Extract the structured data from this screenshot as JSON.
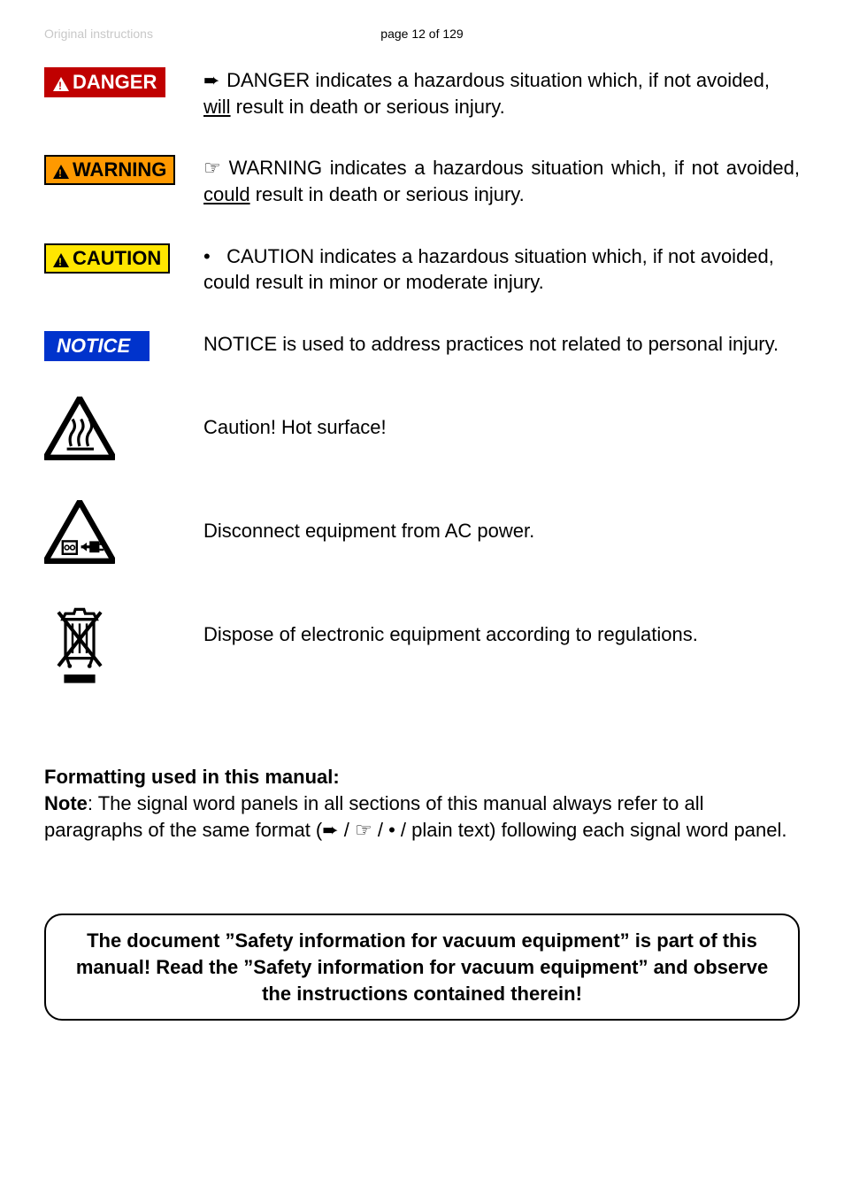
{
  "header": {
    "left": "Original instructions",
    "center": "page 12 of 129"
  },
  "items": [
    {
      "panel": "DANGER",
      "panel_class": "panel-danger",
      "tri_class": "tri-white",
      "exc_class": "tri-exc-red",
      "bullet": "➨",
      "text_pre": "DANGER indicates a hazardous situation which, if not avoided, ",
      "underlined": "will",
      "text_post": " result in death or serious injury.",
      "justify": false
    },
    {
      "panel": "WARNING",
      "panel_class": "panel-warning",
      "tri_class": "tri-black",
      "exc_class": "tri-exc-orange",
      "bullet": "☞",
      "text_pre": "WARNING indicates a hazardous situation which, if not avoided, ",
      "underlined": "could",
      "text_post": " result in death or serious injury.",
      "justify": true
    },
    {
      "panel": "CAUTION",
      "panel_class": "panel-caution",
      "tri_class": "tri-black",
      "exc_class": "tri-exc-yellow",
      "bullet": "•",
      "text_pre": "CAUTION indicates a hazardous situation which, if not avoided, could result in minor or moderate injury.",
      "underlined": "",
      "text_post": "",
      "justify": false
    },
    {
      "panel": "NOTICE",
      "panel_class": "panel-notice",
      "tri_class": "",
      "exc_class": "",
      "bullet": "",
      "text_pre": "NOTICE is used to address practices not related to personal injury.",
      "underlined": "",
      "text_post": "",
      "justify": true
    }
  ],
  "symbols": [
    {
      "icon": "hot-surface",
      "text": "Caution! Hot surface!",
      "justify": false
    },
    {
      "icon": "disconnect-power",
      "text": "Disconnect equipment from AC power.",
      "justify": false
    },
    {
      "icon": "weee-bin",
      "text": "Dispose of electronic equipment according to regulations.",
      "justify": true
    }
  ],
  "formatting": {
    "heading": "Formatting used in this manual:",
    "note_label": "Note",
    "note_text": ": The signal word panels in all sections of this manual always refer to all paragraphs of the same format (➨ / ☞ / • / plain text)  following each signal word panel."
  },
  "footer_box": "The document ”Safety information for vacuum equipment” is part of this manual! Read the ”Safety information for vacuum equipment” and observe the instructions contained therein!"
}
